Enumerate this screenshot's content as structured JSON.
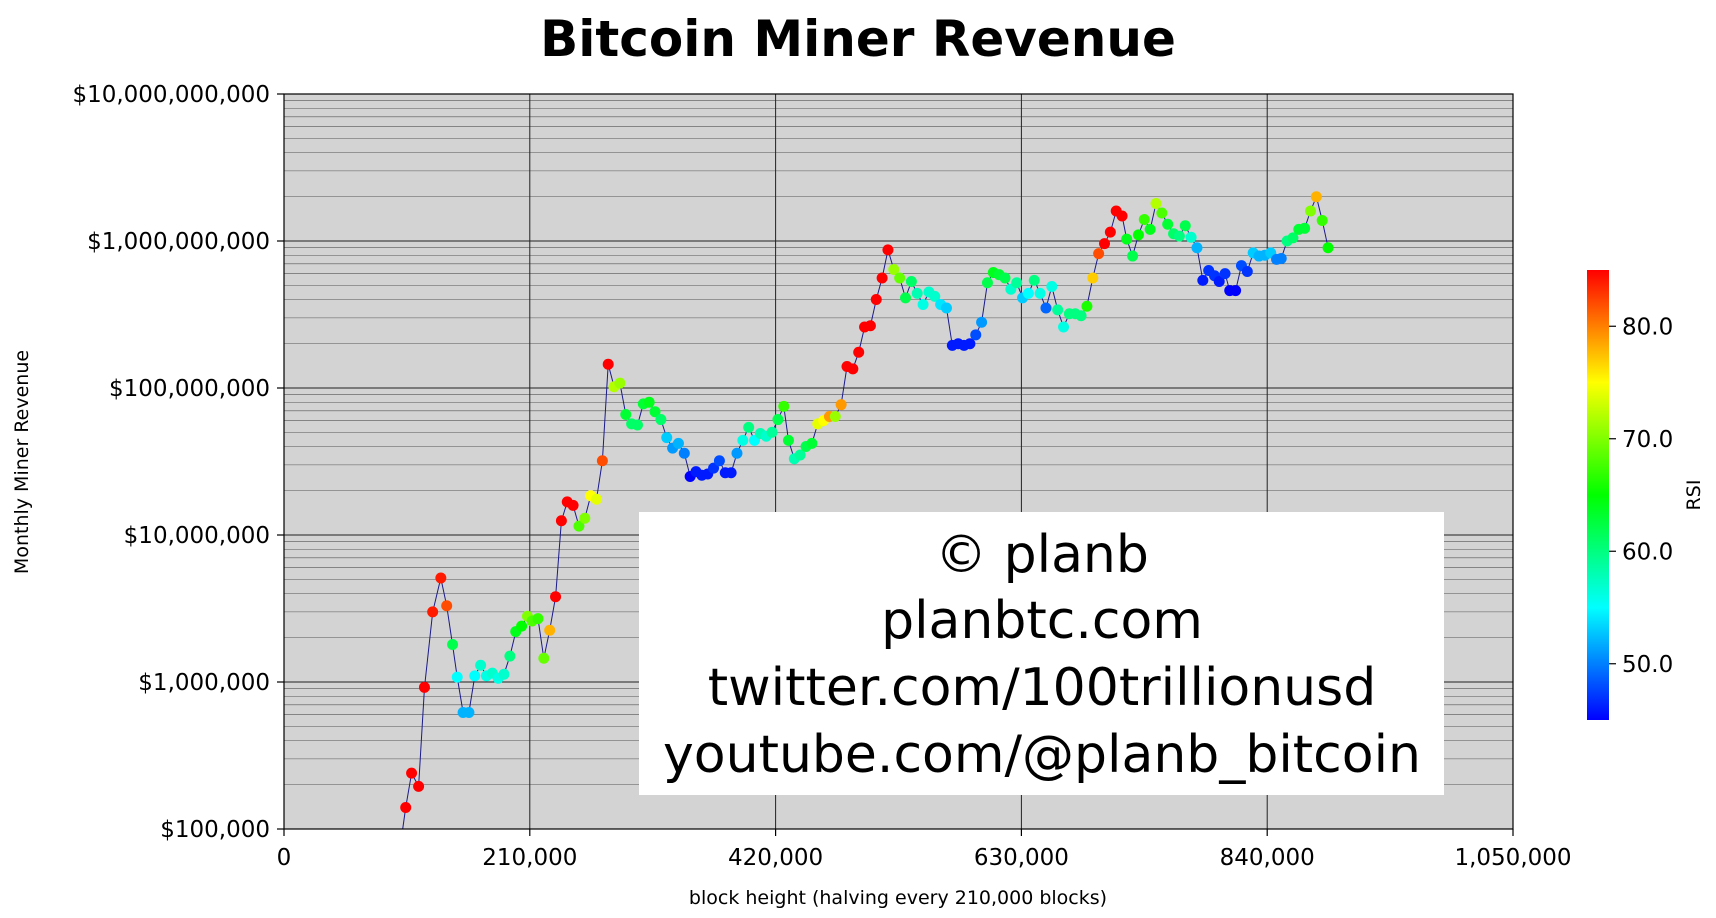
{
  "chart_data": {
    "type": "scatter",
    "title": "Bitcoin Miner Revenue",
    "xlabel": "block height (halving every 210,000 blocks)",
    "ylabel": "Monthly Miner Revenue",
    "xlim": [
      0,
      1050000
    ],
    "ylim": [
      100000,
      10000000000
    ],
    "yscale": "log",
    "grid": true,
    "x_ticks": [
      0,
      210000,
      420000,
      630000,
      840000,
      1050000
    ],
    "x_tick_labels": [
      "0",
      "210,000",
      "420,000",
      "630,000",
      "840,000",
      "1,050,000"
    ],
    "y_ticks": [
      100000,
      1000000,
      10000000,
      100000000,
      1000000000,
      10000000000
    ],
    "y_tick_labels": [
      "$100,000",
      "$1,000,000",
      "$10,000,000",
      "$100,000,000",
      "$1,000,000,000",
      "$10,000,000,000"
    ],
    "colorbar": {
      "label": "RSI",
      "range": [
        45,
        85
      ],
      "ticks": [
        50,
        60,
        70,
        80
      ],
      "tick_labels": [
        "50.0",
        "60.0",
        "70.0",
        "80.0"
      ],
      "colormap": [
        "#0000ff",
        "#00ffff",
        "#00ff00",
        "#ffff00",
        "#ff0000"
      ]
    },
    "line_color": "#1a1a8c",
    "points": [
      {
        "x": 104000,
        "y": 140000,
        "rsi": 85
      },
      {
        "x": 109000,
        "y": 240000,
        "rsi": 85
      },
      {
        "x": 115000,
        "y": 195000,
        "rsi": 85
      },
      {
        "x": 120000,
        "y": 920000,
        "rsi": 85
      },
      {
        "x": 127000,
        "y": 3000000,
        "rsi": 84
      },
      {
        "x": 134000,
        "y": 5100000,
        "rsi": 84
      },
      {
        "x": 139000,
        "y": 3300000,
        "rsi": 82
      },
      {
        "x": 144000,
        "y": 1800000,
        "rsi": 62
      },
      {
        "x": 148000,
        "y": 1080000,
        "rsi": 55
      },
      {
        "x": 153000,
        "y": 620000,
        "rsi": 52
      },
      {
        "x": 158000,
        "y": 620000,
        "rsi": 52
      },
      {
        "x": 163000,
        "y": 1100000,
        "rsi": 55
      },
      {
        "x": 168000,
        "y": 1300000,
        "rsi": 57
      },
      {
        "x": 173000,
        "y": 1100000,
        "rsi": 56
      },
      {
        "x": 178000,
        "y": 1150000,
        "rsi": 57
      },
      {
        "x": 183000,
        "y": 1060000,
        "rsi": 56
      },
      {
        "x": 188000,
        "y": 1130000,
        "rsi": 57
      },
      {
        "x": 193000,
        "y": 1500000,
        "rsi": 60
      },
      {
        "x": 198000,
        "y": 2200000,
        "rsi": 64
      },
      {
        "x": 203000,
        "y": 2400000,
        "rsi": 65
      },
      {
        "x": 208000,
        "y": 2800000,
        "rsi": 70
      },
      {
        "x": 212000,
        "y": 2600000,
        "rsi": 68
      },
      {
        "x": 217000,
        "y": 2700000,
        "rsi": 67
      },
      {
        "x": 222000,
        "y": 1450000,
        "rsi": 69
      },
      {
        "x": 227000,
        "y": 2250000,
        "rsi": 78
      },
      {
        "x": 232000,
        "y": 3800000,
        "rsi": 85
      },
      {
        "x": 237000,
        "y": 12500000,
        "rsi": 85
      },
      {
        "x": 242000,
        "y": 16800000,
        "rsi": 85
      },
      {
        "x": 247000,
        "y": 15900000,
        "rsi": 85
      },
      {
        "x": 252000,
        "y": 11500000,
        "rsi": 68
      },
      {
        "x": 257000,
        "y": 13000000,
        "rsi": 70
      },
      {
        "x": 262000,
        "y": 18500000,
        "rsi": 75
      },
      {
        "x": 267000,
        "y": 17500000,
        "rsi": 74
      },
      {
        "x": 272000,
        "y": 32000000,
        "rsi": 82
      },
      {
        "x": 277000,
        "y": 145000000,
        "rsi": 85
      },
      {
        "x": 282000,
        "y": 102000000,
        "rsi": 72
      },
      {
        "x": 287000,
        "y": 108000000,
        "rsi": 71
      },
      {
        "x": 292000,
        "y": 66000000,
        "rsi": 63
      },
      {
        "x": 297000,
        "y": 57000000,
        "rsi": 61
      },
      {
        "x": 302000,
        "y": 56000000,
        "rsi": 61
      },
      {
        "x": 307000,
        "y": 78000000,
        "rsi": 63
      },
      {
        "x": 312000,
        "y": 80000000,
        "rsi": 64
      },
      {
        "x": 317000,
        "y": 69000000,
        "rsi": 63
      },
      {
        "x": 322000,
        "y": 61000000,
        "rsi": 61
      },
      {
        "x": 327000,
        "y": 46000000,
        "rsi": 53
      },
      {
        "x": 332000,
        "y": 39000000,
        "rsi": 51
      },
      {
        "x": 337000,
        "y": 42000000,
        "rsi": 52
      },
      {
        "x": 342000,
        "y": 36000000,
        "rsi": 50
      },
      {
        "x": 347000,
        "y": 25000000,
        "rsi": 45
      },
      {
        "x": 352000,
        "y": 27000000,
        "rsi": 46
      },
      {
        "x": 357000,
        "y": 25500000,
        "rsi": 46
      },
      {
        "x": 362000,
        "y": 26000000,
        "rsi": 46
      },
      {
        "x": 367000,
        "y": 28500000,
        "rsi": 47
      },
      {
        "x": 372000,
        "y": 32000000,
        "rsi": 48
      },
      {
        "x": 377000,
        "y": 26500000,
        "rsi": 46
      },
      {
        "x": 382000,
        "y": 26500000,
        "rsi": 46
      },
      {
        "x": 387000,
        "y": 36000000,
        "rsi": 51
      },
      {
        "x": 392000,
        "y": 44000000,
        "rsi": 56
      },
      {
        "x": 397000,
        "y": 54000000,
        "rsi": 60
      },
      {
        "x": 402000,
        "y": 44000000,
        "rsi": 55
      },
      {
        "x": 407000,
        "y": 49000000,
        "rsi": 58
      },
      {
        "x": 412000,
        "y": 47000000,
        "rsi": 57
      },
      {
        "x": 417000,
        "y": 50000000,
        "rsi": 59
      },
      {
        "x": 422000,
        "y": 61000000,
        "rsi": 62
      },
      {
        "x": 427000,
        "y": 75000000,
        "rsi": 67
      },
      {
        "x": 431000,
        "y": 44000000,
        "rsi": 63
      },
      {
        "x": 436000,
        "y": 33000000,
        "rsi": 58
      },
      {
        "x": 441000,
        "y": 35000000,
        "rsi": 59
      },
      {
        "x": 446000,
        "y": 40000000,
        "rsi": 62
      },
      {
        "x": 451000,
        "y": 42000000,
        "rsi": 63
      },
      {
        "x": 456000,
        "y": 57000000,
        "rsi": 74
      },
      {
        "x": 461000,
        "y": 60000000,
        "rsi": 75
      },
      {
        "x": 466000,
        "y": 64000000,
        "rsi": 79
      },
      {
        "x": 471000,
        "y": 64000000,
        "rsi": 71
      },
      {
        "x": 476000,
        "y": 77000000,
        "rsi": 79
      },
      {
        "x": 481000,
        "y": 140000000,
        "rsi": 85
      },
      {
        "x": 486000,
        "y": 135000000,
        "rsi": 85
      },
      {
        "x": 491000,
        "y": 175000000,
        "rsi": 85
      },
      {
        "x": 496000,
        "y": 260000000,
        "rsi": 85
      },
      {
        "x": 501000,
        "y": 265000000,
        "rsi": 85
      },
      {
        "x": 506000,
        "y": 400000000,
        "rsi": 85
      },
      {
        "x": 511000,
        "y": 560000000,
        "rsi": 85
      },
      {
        "x": 516000,
        "y": 870000000,
        "rsi": 85
      },
      {
        "x": 521000,
        "y": 640000000,
        "rsi": 71
      },
      {
        "x": 526000,
        "y": 560000000,
        "rsi": 69
      },
      {
        "x": 531000,
        "y": 410000000,
        "rsi": 62
      },
      {
        "x": 536000,
        "y": 530000000,
        "rsi": 61
      },
      {
        "x": 541000,
        "y": 440000000,
        "rsi": 58
      },
      {
        "x": 546000,
        "y": 370000000,
        "rsi": 56
      },
      {
        "x": 551000,
        "y": 450000000,
        "rsi": 57
      },
      {
        "x": 556000,
        "y": 420000000,
        "rsi": 57
      },
      {
        "x": 561000,
        "y": 370000000,
        "rsi": 54
      },
      {
        "x": 566000,
        "y": 350000000,
        "rsi": 53
      },
      {
        "x": 571000,
        "y": 195000000,
        "rsi": 46
      },
      {
        "x": 576000,
        "y": 200000000,
        "rsi": 46
      },
      {
        "x": 581000,
        "y": 195000000,
        "rsi": 46
      },
      {
        "x": 586000,
        "y": 200000000,
        "rsi": 46
      },
      {
        "x": 591000,
        "y": 230000000,
        "rsi": 48
      },
      {
        "x": 596000,
        "y": 280000000,
        "rsi": 51
      },
      {
        "x": 601000,
        "y": 520000000,
        "rsi": 62
      },
      {
        "x": 606000,
        "y": 610000000,
        "rsi": 64
      },
      {
        "x": 611000,
        "y": 590000000,
        "rsi": 63
      },
      {
        "x": 616000,
        "y": 560000000,
        "rsi": 62
      },
      {
        "x": 621000,
        "y": 470000000,
        "rsi": 57
      },
      {
        "x": 626000,
        "y": 520000000,
        "rsi": 59
      },
      {
        "x": 631000,
        "y": 410000000,
        "rsi": 53
      },
      {
        "x": 636000,
        "y": 440000000,
        "rsi": 55
      },
      {
        "x": 641000,
        "y": 540000000,
        "rsi": 60
      },
      {
        "x": 646000,
        "y": 440000000,
        "rsi": 56
      },
      {
        "x": 651000,
        "y": 350000000,
        "rsi": 49
      },
      {
        "x": 656000,
        "y": 490000000,
        "rsi": 56
      },
      {
        "x": 661000,
        "y": 340000000,
        "rsi": 59
      },
      {
        "x": 666000,
        "y": 260000000,
        "rsi": 56
      },
      {
        "x": 671000,
        "y": 320000000,
        "rsi": 60
      },
      {
        "x": 676000,
        "y": 320000000,
        "rsi": 60
      },
      {
        "x": 681000,
        "y": 310000000,
        "rsi": 60
      },
      {
        "x": 686000,
        "y": 360000000,
        "rsi": 66
      },
      {
        "x": 691000,
        "y": 560000000,
        "rsi": 77
      },
      {
        "x": 696000,
        "y": 820000000,
        "rsi": 82
      },
      {
        "x": 701000,
        "y": 960000000,
        "rsi": 85
      },
      {
        "x": 706000,
        "y": 1150000000,
        "rsi": 85
      },
      {
        "x": 711000,
        "y": 1600000000,
        "rsi": 85
      },
      {
        "x": 716000,
        "y": 1480000000,
        "rsi": 85
      },
      {
        "x": 720000,
        "y": 1030000000,
        "rsi": 64
      },
      {
        "x": 725000,
        "y": 790000000,
        "rsi": 62
      },
      {
        "x": 730000,
        "y": 1100000000,
        "rsi": 65
      },
      {
        "x": 735000,
        "y": 1400000000,
        "rsi": 67
      },
      {
        "x": 740000,
        "y": 1200000000,
        "rsi": 64
      },
      {
        "x": 745000,
        "y": 1800000000,
        "rsi": 72
      },
      {
        "x": 750000,
        "y": 1550000000,
        "rsi": 68
      },
      {
        "x": 755000,
        "y": 1300000000,
        "rsi": 63
      },
      {
        "x": 760000,
        "y": 1120000000,
        "rsi": 61
      },
      {
        "x": 765000,
        "y": 1080000000,
        "rsi": 60
      },
      {
        "x": 770000,
        "y": 1270000000,
        "rsi": 62
      },
      {
        "x": 775000,
        "y": 1060000000,
        "rsi": 57
      },
      {
        "x": 780000,
        "y": 900000000,
        "rsi": 52
      },
      {
        "x": 785000,
        "y": 540000000,
        "rsi": 46
      },
      {
        "x": 790000,
        "y": 630000000,
        "rsi": 47
      },
      {
        "x": 795000,
        "y": 580000000,
        "rsi": 47
      },
      {
        "x": 799000,
        "y": 530000000,
        "rsi": 46
      },
      {
        "x": 804000,
        "y": 600000000,
        "rsi": 47
      },
      {
        "x": 808000,
        "y": 460000000,
        "rsi": 45
      },
      {
        "x": 813000,
        "y": 460000000,
        "rsi": 45
      },
      {
        "x": 818000,
        "y": 680000000,
        "rsi": 48
      },
      {
        "x": 823000,
        "y": 620000000,
        "rsi": 47
      },
      {
        "x": 828000,
        "y": 830000000,
        "rsi": 53
      },
      {
        "x": 833000,
        "y": 790000000,
        "rsi": 52
      },
      {
        "x": 838000,
        "y": 800000000,
        "rsi": 52
      },
      {
        "x": 843000,
        "y": 830000000,
        "rsi": 53
      },
      {
        "x": 848000,
        "y": 750000000,
        "rsi": 50
      },
      {
        "x": 852000,
        "y": 760000000,
        "rsi": 50
      },
      {
        "x": 857000,
        "y": 1000000000,
        "rsi": 60
      },
      {
        "x": 862000,
        "y": 1050000000,
        "rsi": 61
      },
      {
        "x": 867000,
        "y": 1200000000,
        "rsi": 63
      },
      {
        "x": 872000,
        "y": 1220000000,
        "rsi": 63
      },
      {
        "x": 877000,
        "y": 1600000000,
        "rsi": 70
      },
      {
        "x": 882000,
        "y": 2000000000,
        "rsi": 78
      },
      {
        "x": 887000,
        "y": 1380000000,
        "rsi": 67
      },
      {
        "x": 892000,
        "y": 900000000,
        "rsi": 65
      }
    ]
  },
  "watermark": {
    "lines": [
      "© planb",
      "planbtc.com",
      "twitter.com/100trillionusd",
      "youtube.com/@planb_bitcoin"
    ]
  }
}
